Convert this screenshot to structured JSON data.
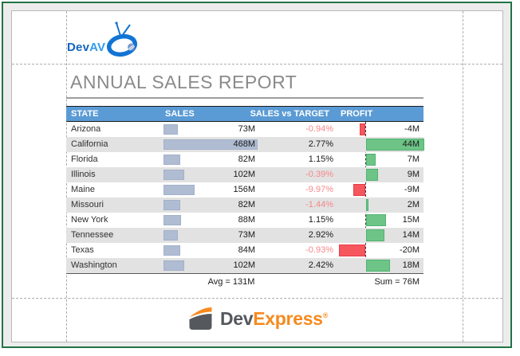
{
  "header_logo": {
    "brand_prefix": "Dev",
    "brand_suffix": "AV"
  },
  "title": "ANNUAL SALES REPORT",
  "table": {
    "columns": [
      "STATE",
      "SALES",
      "SALES vs TARGET",
      "PROFIT"
    ],
    "rows": [
      {
        "state": "Arizona",
        "sales": "73M",
        "sales_m": 73,
        "target_pct": "-0.94%",
        "profit": "-4M",
        "profit_m": -4
      },
      {
        "state": "California",
        "sales": "468M",
        "sales_m": 468,
        "target_pct": "2.77%",
        "profit": "44M",
        "profit_m": 44
      },
      {
        "state": "Florida",
        "sales": "82M",
        "sales_m": 82,
        "target_pct": "1.15%",
        "profit": "7M",
        "profit_m": 7
      },
      {
        "state": "Illinois",
        "sales": "102M",
        "sales_m": 102,
        "target_pct": "-0.39%",
        "profit": "9M",
        "profit_m": 9
      },
      {
        "state": "Maine",
        "sales": "156M",
        "sales_m": 156,
        "target_pct": "-9.97%",
        "profit": "-9M",
        "profit_m": -9
      },
      {
        "state": "Missouri",
        "sales": "82M",
        "sales_m": 82,
        "target_pct": "-1.44%",
        "profit": "2M",
        "profit_m": 2
      },
      {
        "state": "New York",
        "sales": "88M",
        "sales_m": 88,
        "target_pct": "1.15%",
        "profit": "15M",
        "profit_m": 15
      },
      {
        "state": "Tennessee",
        "sales": "73M",
        "sales_m": 73,
        "target_pct": "2.92%",
        "profit": "14M",
        "profit_m": 14
      },
      {
        "state": "Texas",
        "sales": "84M",
        "sales_m": 84,
        "target_pct": "-0.93%",
        "profit": "-20M",
        "profit_m": -20
      },
      {
        "state": "Washington",
        "sales": "102M",
        "sales_m": 102,
        "target_pct": "2.42%",
        "profit": "18M",
        "profit_m": 18
      }
    ],
    "summary": {
      "avg": "Avg = 131M",
      "sum": "Sum = 76M"
    }
  },
  "footer_logo": {
    "prefix": "Dev",
    "suffix": "Express",
    "reg": "®"
  },
  "colors": {
    "frame_border": "#217346",
    "frame_bg": "#ececec",
    "header_blue": "#5b9bd5",
    "row_alt_gray": "#e2e2e2",
    "sales_bar": "#afbcd2",
    "profit_pos": "#6ec487",
    "profit_neg": "#f6575f",
    "neg_pct_text": "#f8868a",
    "title_gray": "#8a8a8a",
    "devav_blue_dark": "#1566c0",
    "devav_blue_light": "#2f9bea",
    "devex_gray": "#55585d",
    "devex_orange": "#f68a1e"
  }
}
